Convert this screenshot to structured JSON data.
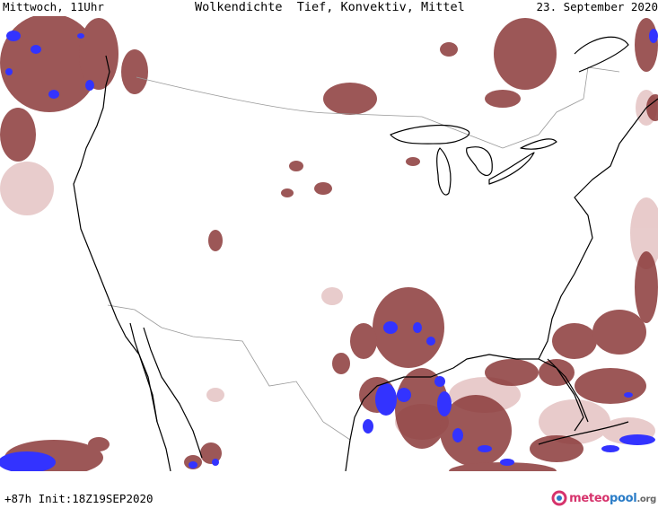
{
  "header": {
    "left": "Mittwoch, 11Uhr",
    "center": "Wolkendichte  Tief, Konvektiv, Mittel",
    "right": "23. September 2020"
  },
  "footer": {
    "forecast_info": "+87h Init:18Z19SEP2020"
  },
  "logo": {
    "part1": "meteo",
    "part2": "pool",
    "part3": ".org"
  },
  "colors": {
    "cloud_dense": "#8b3a3a",
    "cloud_medium": "#b56a6a",
    "cloud_light": "#e6c6c6",
    "convective": "#3333ff",
    "coastline": "#000000",
    "border": "#999999"
  },
  "map": {
    "region": "USA",
    "layers": [
      "cloud-density-low",
      "cloud-density-convective",
      "cloud-density-medium"
    ]
  }
}
